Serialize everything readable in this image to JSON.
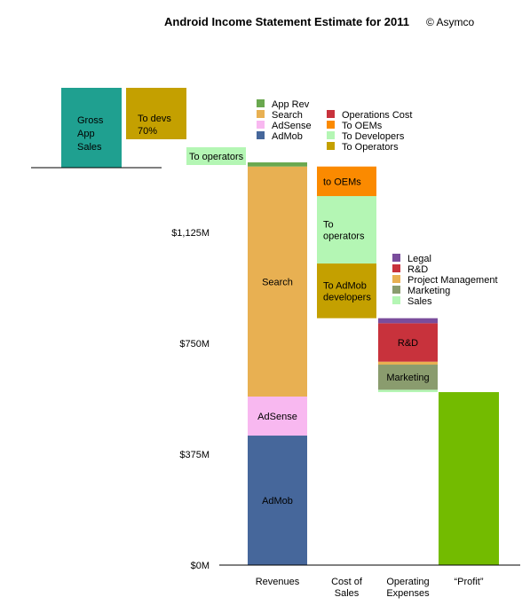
{
  "chart_data": {
    "type": "bar",
    "title": "Android Income Statement Estimate for 2011",
    "credit": "© Asymco",
    "y_unit": "M",
    "ylim": [
      0,
      1375
    ],
    "y_ticks": [
      {
        "value": 0,
        "label": "$0M"
      },
      {
        "value": 375,
        "label": "$375M"
      },
      {
        "value": 750,
        "label": "$750M"
      },
      {
        "value": 1125,
        "label": "$1,125M"
      }
    ],
    "categories": [
      {
        "key": "revenues",
        "label": "Revenues"
      },
      {
        "key": "cost",
        "label": "Cost of Sales"
      },
      {
        "key": "opex",
        "label": "Operating Expenses"
      },
      {
        "key": "profit",
        "label": "“Profit”"
      }
    ],
    "colors": {
      "app_rev": "#6aa84f",
      "search": "#e8b052",
      "adsense": "#f8b8f0",
      "admob": "#46679b",
      "operations_cost": "#c8323c",
      "to_oems": "#fb8a00",
      "to_developers": "#b4f6b4",
      "to_operators": "#c4a000",
      "legal": "#7a4d9c",
      "rd": "#c8323c",
      "project_management": "#e8b052",
      "marketing": "#8a9c6e",
      "sales": "#b4f6b4",
      "profit": "#73bb00",
      "gross_app_sales": "#1fa090"
    },
    "series": [
      {
        "category": "revenues",
        "segment": "AdMob",
        "label": "AdMob",
        "start": 0,
        "value": 438,
        "color_key": "admob"
      },
      {
        "category": "revenues",
        "segment": "AdSense",
        "label": "AdSense",
        "start": 438,
        "value": 132,
        "color_key": "adsense"
      },
      {
        "category": "revenues",
        "segment": "Search",
        "label": "Search",
        "start": 570,
        "value": 778,
        "color_key": "search"
      },
      {
        "category": "revenues",
        "segment": "App Rev",
        "label": "",
        "start": 1348,
        "value": 14,
        "color_key": "app_rev"
      },
      {
        "category": "cost",
        "segment": "To AdMob developers",
        "label": "To AdMob developers",
        "start": 835,
        "value": 185,
        "color_key": "to_operators"
      },
      {
        "category": "cost",
        "segment": "To operators",
        "label": "To operators",
        "start": 1020,
        "value": 228,
        "color_key": "to_developers"
      },
      {
        "category": "cost",
        "segment": "To OEMs",
        "label": "to OEMs",
        "start": 1248,
        "value": 100,
        "color_key": "to_oems"
      },
      {
        "category": "opex",
        "segment": "Sales",
        "label": "",
        "start": 585,
        "value": 8,
        "color_key": "sales"
      },
      {
        "category": "opex",
        "segment": "Marketing",
        "label": "Marketing",
        "start": 593,
        "value": 85,
        "color_key": "marketing"
      },
      {
        "category": "opex",
        "segment": "Project Management",
        "label": "",
        "start": 678,
        "value": 10,
        "color_key": "project_management"
      },
      {
        "category": "opex",
        "segment": "R&D",
        "label": "R&D",
        "start": 688,
        "value": 130,
        "color_key": "rd"
      },
      {
        "category": "opex",
        "segment": "Legal",
        "label": "",
        "start": 818,
        "value": 17,
        "color_key": "legal"
      },
      {
        "category": "profit",
        "segment": "Profit",
        "label": "",
        "start": 0,
        "value": 585,
        "color_key": "profit"
      }
    ],
    "inset": {
      "gross_label": "Gross App Sales",
      "gross_lines": [
        "Gross",
        "App",
        "Sales"
      ],
      "devs_lines": [
        "To devs",
        "70%"
      ],
      "operators_label": "To operators"
    },
    "legends": [
      {
        "items": [
          {
            "label": "App Rev",
            "color_key": "app_rev"
          },
          {
            "label": "Search",
            "color_key": "search"
          },
          {
            "label": "AdSense",
            "color_key": "adsense"
          },
          {
            "label": "AdMob",
            "color_key": "admob"
          }
        ]
      },
      {
        "items": [
          {
            "label": "Operations Cost",
            "color_key": "operations_cost"
          },
          {
            "label": "To OEMs",
            "color_key": "to_oems"
          },
          {
            "label": "To Developers",
            "color_key": "to_developers"
          },
          {
            "label": "To Operators",
            "color_key": "to_operators"
          }
        ]
      },
      {
        "items": [
          {
            "label": "Legal",
            "color_key": "legal"
          },
          {
            "label": "R&D",
            "color_key": "rd"
          },
          {
            "label": "Project Management",
            "color_key": "project_management"
          },
          {
            "label": "Marketing",
            "color_key": "marketing"
          },
          {
            "label": "Sales",
            "color_key": "sales"
          }
        ]
      }
    ]
  }
}
